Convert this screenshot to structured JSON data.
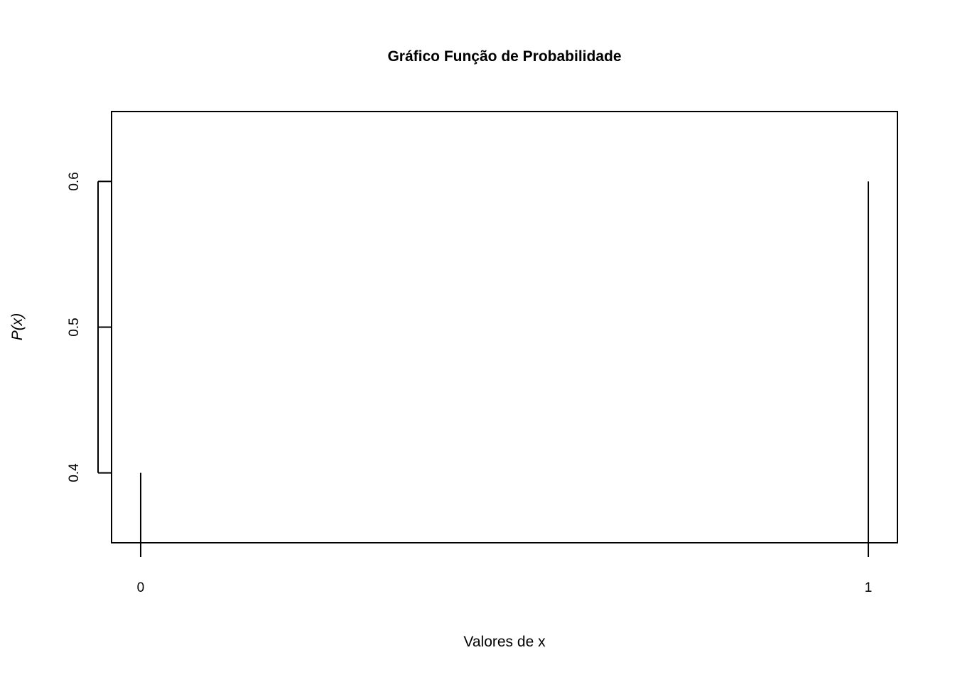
{
  "chart_data": {
    "type": "bar",
    "title": "Gráfico Função de Probabilidade",
    "xlabel": "Valores de x",
    "ylabel": "P(x)",
    "x": [
      0,
      1
    ],
    "values": [
      0.4,
      0.6
    ],
    "x_ticks": [
      "0",
      "1"
    ],
    "y_ticks": [
      0.4,
      0.5,
      0.6
    ],
    "y_tick_labels": [
      "0.4",
      "0.5",
      "0.6"
    ],
    "xlim": [
      -0.04,
      1.04
    ],
    "ylim": [
      0.352,
      0.648
    ],
    "grid": false,
    "legend": "none",
    "colors": {
      "line": "#000000",
      "background": "#ffffff"
    }
  }
}
